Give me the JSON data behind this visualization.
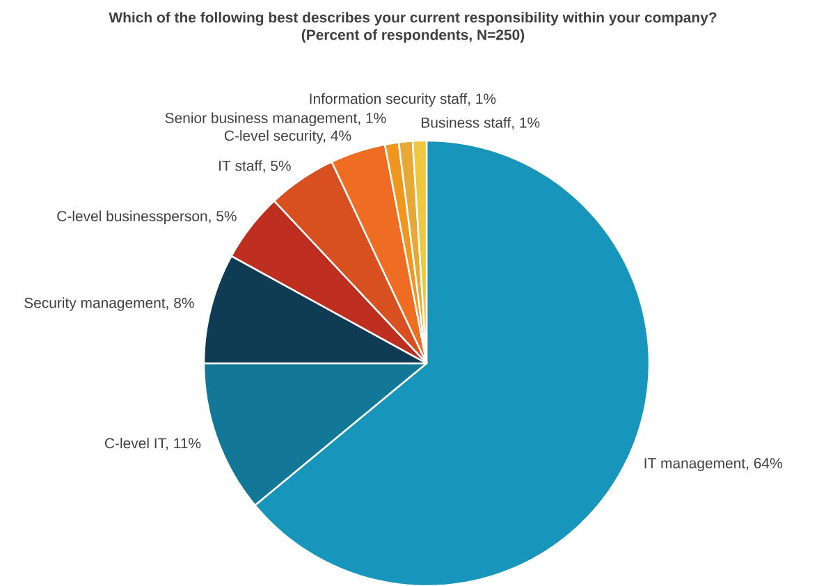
{
  "chart_data": {
    "type": "pie",
    "title": "Which of the following best describes your current responsibility within your company?",
    "subtitle": "(Percent of respondents, N=250)",
    "categories": [
      "IT management, 64%",
      "C-level IT, 11%",
      "Security management, 8%",
      "C-level businessperson, 5%",
      "IT staff, 5%",
      "C-level security, 4%",
      "Senior business management, 1%",
      "Information security staff, 1%",
      "Business staff, 1%"
    ],
    "values": [
      64,
      11,
      8,
      5,
      5,
      4,
      1,
      1,
      1
    ],
    "colors": [
      "#1795bb",
      "#137898",
      "#0f3b54",
      "#be2e1e",
      "#d84f20",
      "#ef6d22",
      "#f0961f",
      "#e8a838",
      "#edc840"
    ]
  }
}
